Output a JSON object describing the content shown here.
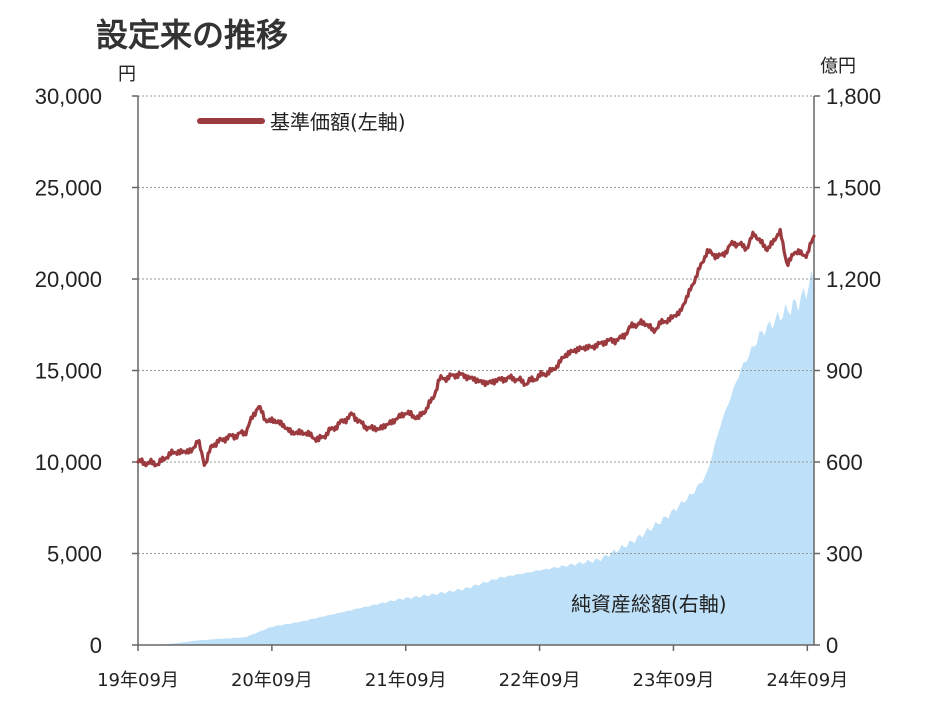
{
  "chart_data": {
    "type": "line",
    "title": "設定来の推移",
    "left_axis": {
      "unit": "円",
      "ylim": [
        0,
        30000
      ],
      "ticks": [
        "0",
        "5,000",
        "10,000",
        "15,000",
        "20,000",
        "25,000",
        "30,000"
      ]
    },
    "right_axis": {
      "unit": "億円",
      "ylim": [
        0,
        1800
      ],
      "ticks": [
        "0",
        "300",
        "600",
        "900",
        "1,200",
        "1,500",
        "1,800"
      ]
    },
    "x_ticks": [
      "19年09月",
      "20年09月",
      "21年09月",
      "22年09月",
      "23年09月",
      "24年09月"
    ],
    "grid": "horizontal dotted",
    "legend": {
      "position": "top-left",
      "label": "基準価額(左軸)"
    },
    "annotation": "純資産総額(右軸)",
    "colors": {
      "nav_line": "#9B3A3F",
      "assets_area": "#BEE0F8",
      "axis": "#666666",
      "grid": "#999999"
    },
    "series": [
      {
        "name": "基準価額(左軸)",
        "type": "line",
        "axis": "left",
        "x": [
          2019.75,
          2019.9,
          2020.0,
          2020.15,
          2020.2,
          2020.25,
          2020.3,
          2020.4,
          2020.55,
          2020.65,
          2020.7,
          2020.8,
          2020.9,
          2021.0,
          2021.1,
          2021.2,
          2021.35,
          2021.45,
          2021.55,
          2021.65,
          2021.75,
          2021.85,
          2021.95,
          2022.0,
          2022.15,
          2022.35,
          2022.45,
          2022.55,
          2022.65,
          2022.75,
          2022.85,
          2022.95,
          2023.05,
          2023.15,
          2023.25,
          2023.35,
          2023.45,
          2023.55,
          2023.6,
          2023.65,
          2023.7,
          2023.8,
          2023.9,
          2024.0,
          2024.1,
          2024.2,
          2024.3,
          2024.35,
          2024.45,
          2024.55,
          2024.6,
          2024.65,
          2024.75,
          2024.8
        ],
        "values": [
          10000,
          9900,
          10500,
          10600,
          11200,
          9800,
          10900,
          11300,
          11600,
          13100,
          12300,
          12200,
          11600,
          11600,
          11200,
          11800,
          12600,
          11900,
          11800,
          12200,
          12700,
          12400,
          13400,
          14500,
          14800,
          14300,
          14500,
          14600,
          14300,
          14700,
          15000,
          15900,
          16200,
          16300,
          16600,
          16700,
          17500,
          17600,
          17100,
          17600,
          17700,
          18200,
          19800,
          21500,
          21200,
          22000,
          21700,
          22500,
          21600,
          22600,
          20700,
          21500,
          21300,
          22400
        ]
      },
      {
        "name": "純資産総額(右軸)",
        "type": "area",
        "axis": "right",
        "x": [
          2019.75,
          2019.9,
          2020.0,
          2020.2,
          2020.35,
          2020.55,
          2020.75,
          2020.95,
          2021.2,
          2021.45,
          2021.7,
          2021.95,
          2022.2,
          2022.45,
          2022.75,
          2022.95,
          2023.2,
          2023.45,
          2023.7,
          2023.9,
          2024.0,
          2024.1,
          2024.25,
          2024.4,
          2024.55,
          2024.7,
          2024.8
        ],
        "values": [
          0,
          0,
          4,
          15,
          20,
          25,
          60,
          75,
          100,
          125,
          150,
          165,
          185,
          220,
          245,
          260,
          280,
          340,
          420,
          500,
          560,
          720,
          900,
          1020,
          1080,
          1130,
          1210
        ]
      }
    ]
  }
}
